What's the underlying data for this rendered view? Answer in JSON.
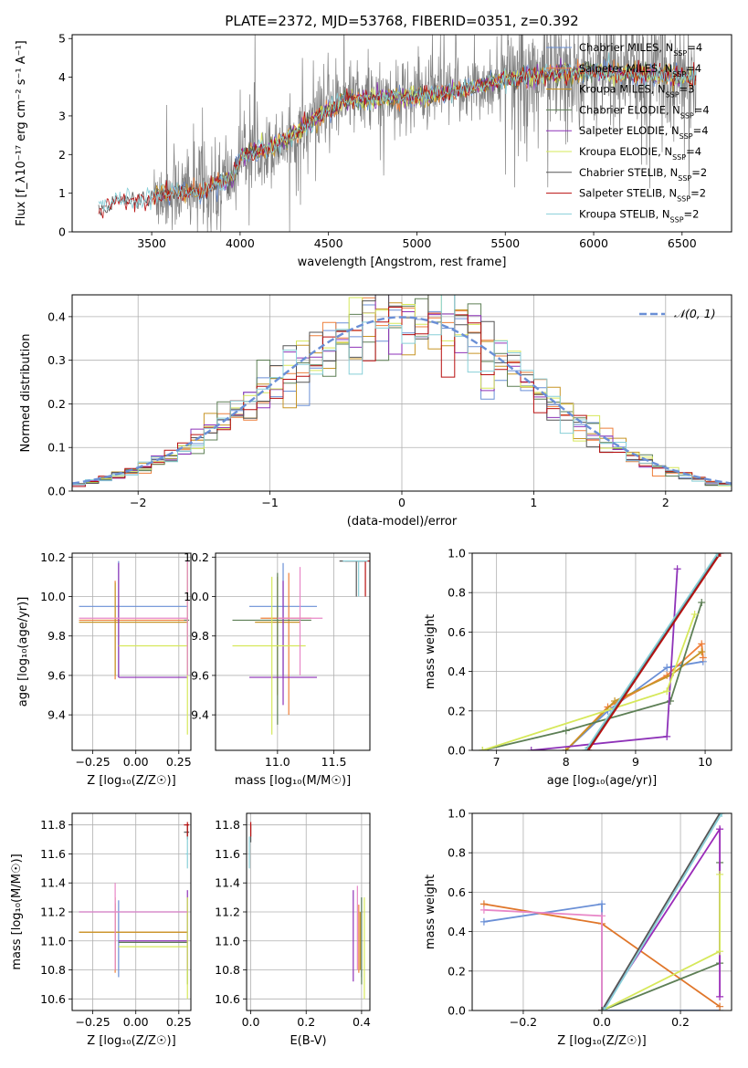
{
  "figure": {
    "title": "PLATE=2372, MJD=53768, FIBERID=0351, z=0.392"
  },
  "colors": {
    "chab_miles": "#6a8fd6",
    "salp_miles": "#ee7f3a",
    "krou_miles": "#c79526",
    "chab_elodie": "#5d7f55",
    "salp_elodie": "#8e32b8",
    "krou_elodie": "#d6e85a",
    "chab_stelib": "#555555",
    "salp_stelib": "#b80f0f",
    "krou_stelib": "#88cfd8",
    "grid": "#b0b0b0",
    "spectrum": "#808080",
    "normal": "#6a8fd6",
    "orange_line": "#e0762a",
    "pink_line": "#e887c7",
    "purple_line": "#9a2ab8"
  },
  "chart_data": [
    {
      "id": "spectrum",
      "type": "line",
      "xlabel": "wavelength [Angstrom, rest frame]",
      "ylabel": "Flux [fₐλ 10⁻¹⁷ erg cm⁻² s⁻¹ A⁻¹]",
      "ylabel_display": "Flux [f_λ10⁻¹⁷ erg cm⁻² s⁻¹ A⁻¹]",
      "xlim": [
        3050,
        6780
      ],
      "ylim": [
        0,
        5.1
      ],
      "xticks": [
        3500,
        4000,
        4500,
        5000,
        5500,
        6000,
        6500
      ],
      "yticks": [
        0,
        1,
        2,
        3,
        4,
        5
      ],
      "legend": [
        "Chabrier MILES, N_SSP=4",
        "Salpeter MILES, N_SSP=4",
        "Kroupa MILES, N_SSP=3",
        "Chabrier ELODIE, N_SSP=4",
        "Salpeter ELODIE, N_SSP=4",
        "Kroupa ELODIE, N_SSP=4",
        "Chabrier STELIB, N_SSP=2",
        "Salpeter STELIB, N_SSP=2",
        "Kroupa STELIB, N_SSP=2"
      ],
      "legend_models": [
        [
          "Chabrier MILES, N",
          "SSP",
          "=4"
        ],
        [
          "Salpeter MILES, N",
          "SSP",
          "=4"
        ],
        [
          "Kroupa MILES, N",
          "SSP",
          "=3"
        ],
        [
          "Chabrier ELODIE, N",
          "SSP",
          "=4"
        ],
        [
          "Salpeter ELODIE, N",
          "SSP",
          "=4"
        ],
        [
          "Kroupa ELODIE, N",
          "SSP",
          "=4"
        ],
        [
          "Chabrier STELIB, N",
          "SSP",
          "=2"
        ],
        [
          "Salpeter STELIB, N",
          "SSP",
          "=2"
        ],
        [
          "Kroupa STELIB, N",
          "SSP",
          "=2"
        ]
      ],
      "continuum": [
        [
          3200,
          0.55
        ],
        [
          3260,
          0.75
        ],
        [
          3350,
          0.85
        ],
        [
          3450,
          0.82
        ],
        [
          3550,
          1.0
        ],
        [
          3700,
          1.05
        ],
        [
          3800,
          1.05
        ],
        [
          3900,
          1.3
        ],
        [
          3960,
          1.4
        ],
        [
          4000,
          1.95
        ],
        [
          4100,
          2.1
        ],
        [
          4200,
          2.25
        ],
        [
          4300,
          2.5
        ],
        [
          4450,
          3.0
        ],
        [
          4600,
          3.4
        ],
        [
          4800,
          3.45
        ],
        [
          5000,
          3.5
        ],
        [
          5200,
          3.6
        ],
        [
          5400,
          3.85
        ],
        [
          5600,
          4.0
        ],
        [
          5800,
          4.1
        ],
        [
          6000,
          4.15
        ],
        [
          6200,
          4.1
        ],
        [
          6400,
          4.05
        ],
        [
          6580,
          4.0
        ]
      ],
      "data_start": 3510
    },
    {
      "id": "residuals",
      "type": "line",
      "xlabel": "(data-model)/error",
      "ylabel": "Normed distribution",
      "xlim": [
        -2.5,
        2.5
      ],
      "ylim": [
        0,
        0.45
      ],
      "xticks": [
        -2,
        -1,
        0,
        1,
        2
      ],
      "yticks": [
        0.0,
        0.1,
        0.2,
        0.3,
        0.4
      ],
      "legend": "𝒩(0, 1)",
      "bin_width": 0.1
    },
    {
      "id": "age_vs_Z",
      "type": "scatter",
      "xlabel": "Z [log₁₀(Z/Z☉)]",
      "ylabel": "age  [log₁₀(age/yr)]",
      "xlim": [
        -0.37,
        0.32
      ],
      "ylim": [
        9.22,
        10.22
      ],
      "xticks": [
        -0.25,
        0.0,
        0.25
      ],
      "xticklabels": [
        "−0.25",
        "0.00",
        "0.25"
      ],
      "yticks": [
        9.4,
        9.6,
        9.8,
        10.0,
        10.2
      ]
    },
    {
      "id": "age_vs_mass",
      "type": "scatter",
      "xlabel": "mass [log₁₀(M/M☉)]",
      "ylabel": "",
      "xlim": [
        10.45,
        11.82
      ],
      "ylim": [
        9.22,
        10.22
      ],
      "xticks": [
        11.0,
        11.5
      ],
      "yticks": [
        9.4,
        9.6,
        9.8,
        10.0,
        10.2
      ]
    },
    {
      "id": "weight_vs_age",
      "type": "line",
      "xlabel": "age  [log₁₀(age/yr)]",
      "ylabel": "mass weight",
      "xlim": [
        6.65,
        10.38
      ],
      "ylim": [
        0,
        1
      ],
      "xticks": [
        7,
        8,
        9,
        10
      ],
      "yticks": [
        0.0,
        0.2,
        0.4,
        0.6,
        0.8,
        1.0
      ]
    },
    {
      "id": "mass_vs_Z",
      "type": "scatter",
      "xlabel": "Z [log₁₀(Z/Z☉)]",
      "ylabel": "mass [log₁₀(M/M☉)]",
      "xlim": [
        -0.37,
        0.32
      ],
      "ylim": [
        10.52,
        11.88
      ],
      "xticks": [
        -0.25,
        0.0,
        0.25
      ],
      "xticklabels": [
        "−0.25",
        "0.00",
        "0.25"
      ],
      "yticks": [
        10.6,
        10.8,
        11.0,
        11.2,
        11.4,
        11.6,
        11.8
      ]
    },
    {
      "id": "mass_vs_ebv",
      "type": "scatter",
      "xlabel": "E(B-V)",
      "ylabel": "",
      "xlim": [
        -0.015,
        0.43
      ],
      "ylim": [
        10.52,
        11.88
      ],
      "xticks": [
        0.0,
        0.2,
        0.4
      ],
      "yticks": [
        10.6,
        10.8,
        11.0,
        11.2,
        11.4,
        11.6,
        11.8
      ]
    },
    {
      "id": "weight_vs_Z",
      "type": "line",
      "xlabel": "Z [log₁₀(Z/Z☉)]",
      "ylabel": "mass weight",
      "xlim": [
        -0.33,
        0.33
      ],
      "ylim": [
        0,
        1
      ],
      "xticks": [
        -0.2,
        0.0,
        0.2
      ],
      "xticklabels": [
        "−0.2",
        "0.0",
        "0.2"
      ],
      "yticks": [
        0.0,
        0.2,
        0.4,
        0.6,
        0.8,
        1.0
      ]
    }
  ],
  "errorbars": {
    "age_vs_Z": [
      {
        "c": "chab_miles",
        "x": -0.1,
        "xlo": -0.33,
        "xhi": 0.3,
        "y": 9.95,
        "ylo": 9.59,
        "yhi": 10.18
      },
      {
        "c": "salp_miles",
        "x": -0.12,
        "xlo": -0.33,
        "xhi": 0.3,
        "y": 9.88,
        "ylo": 9.58,
        "yhi": 10.08
      },
      {
        "c": "krou_miles",
        "x": -0.12,
        "xlo": -0.33,
        "xhi": 0.3,
        "y": 9.87,
        "ylo": 9.6,
        "yhi": 10.07
      },
      {
        "c": "chab_elodie",
        "x": 0.3,
        "xlo": 0.28,
        "xhi": 0.31,
        "y": 9.88,
        "ylo": 9.6,
        "yhi": 10.18
      },
      {
        "c": "salp_elodie",
        "x": -0.1,
        "xlo": -0.1,
        "xhi": 0.3,
        "y": 9.59,
        "ylo": 9.59,
        "yhi": 10.17
      },
      {
        "c": "krou_elodie",
        "x": 0.3,
        "xlo": -0.1,
        "xhi": 0.3,
        "y": 9.75,
        "ylo": 9.3,
        "yhi": 10.17
      },
      {
        "c": "pink_line",
        "x": 0.3,
        "xlo": -0.33,
        "xhi": 0.3,
        "y": 9.89,
        "ylo": 9.6,
        "yhi": 10.18
      }
    ],
    "age_vs_mass": [
      {
        "c": "chab_miles",
        "x": 11.05,
        "xlo": 10.75,
        "xhi": 11.35,
        "y": 9.95,
        "ylo": 9.6,
        "yhi": 10.17
      },
      {
        "c": "salp_miles",
        "x": 11.1,
        "xlo": 10.85,
        "xhi": 11.3,
        "y": 9.89,
        "ylo": 9.4,
        "yhi": 10.12
      },
      {
        "c": "krou_miles",
        "x": 11.0,
        "xlo": 10.8,
        "xhi": 11.2,
        "y": 9.87,
        "ylo": 9.5,
        "yhi": 10.1
      },
      {
        "c": "chab_elodie",
        "x": 11.0,
        "xlo": 10.6,
        "xhi": 11.3,
        "y": 9.88,
        "ylo": 9.35,
        "yhi": 10.12
      },
      {
        "c": "salp_elodie",
        "x": 11.05,
        "xlo": 10.75,
        "xhi": 11.35,
        "y": 9.59,
        "ylo": 9.45,
        "yhi": 10.08
      },
      {
        "c": "krou_elodie",
        "x": 10.95,
        "xlo": 10.6,
        "xhi": 11.25,
        "y": 9.75,
        "ylo": 9.3,
        "yhi": 10.1
      },
      {
        "c": "pink_line",
        "x": 11.2,
        "xlo": 11.0,
        "xhi": 11.4,
        "y": 9.89,
        "ylo": 9.6,
        "yhi": 10.15
      },
      {
        "c": "chab_stelib",
        "x": 11.7,
        "xlo": 11.55,
        "xhi": 11.78,
        "y": 10.18,
        "ylo": 10.0,
        "yhi": 10.18
      },
      {
        "c": "salp_stelib",
        "x": 11.78,
        "xlo": 11.6,
        "xhi": 11.82,
        "y": 10.18,
        "ylo": 10.0,
        "yhi": 10.18
      },
      {
        "c": "krou_stelib",
        "x": 11.72,
        "xlo": 11.58,
        "xhi": 11.8,
        "y": 10.18,
        "ylo": 10.0,
        "yhi": 10.18
      }
    ],
    "mass_vs_Z": [
      {
        "c": "chab_miles",
        "x": -0.1,
        "xlo": -0.33,
        "xhi": 0.3,
        "y": 11.2,
        "ylo": 10.75,
        "yhi": 11.28
      },
      {
        "c": "salp_miles",
        "x": -0.12,
        "xlo": -0.33,
        "xhi": 0.3,
        "y": 11.06,
        "ylo": 10.78,
        "yhi": 11.3
      },
      {
        "c": "krou_miles",
        "x": -0.12,
        "xlo": -0.33,
        "xhi": 0.3,
        "y": 11.06,
        "ylo": 10.8,
        "yhi": 11.26
      },
      {
        "c": "chab_elodie",
        "x": 0.3,
        "xlo": -0.1,
        "xhi": 0.3,
        "y": 10.99,
        "ylo": 10.7,
        "yhi": 11.3
      },
      {
        "c": "salp_elodie",
        "x": 0.3,
        "xlo": -0.1,
        "xhi": 0.3,
        "y": 11.0,
        "ylo": 10.8,
        "yhi": 11.35
      },
      {
        "c": "krou_elodie",
        "x": 0.3,
        "xlo": -0.1,
        "xhi": 0.3,
        "y": 10.96,
        "ylo": 10.6,
        "yhi": 11.3
      },
      {
        "c": "pink_line",
        "x": -0.12,
        "xlo": -0.33,
        "xhi": 0.3,
        "y": 11.2,
        "ylo": 10.8,
        "yhi": 11.4
      },
      {
        "c": "chab_stelib",
        "x": 0.3,
        "xlo": 0.28,
        "xhi": 0.31,
        "y": 11.75,
        "ylo": 11.7,
        "yhi": 11.8
      },
      {
        "c": "salp_stelib",
        "x": 0.3,
        "xlo": 0.28,
        "xhi": 0.31,
        "y": 11.8,
        "ylo": 11.72,
        "yhi": 11.82
      },
      {
        "c": "krou_stelib",
        "x": 0.3,
        "xlo": 0.29,
        "xhi": 0.3,
        "y": 11.6,
        "ylo": 11.5,
        "yhi": 11.72
      }
    ],
    "mass_vs_ebv": [
      {
        "c": "chab_miles",
        "x": 0.4,
        "xlo": 0.4,
        "xhi": 0.4,
        "y": 11.05,
        "ylo": 10.75,
        "yhi": 11.3
      },
      {
        "c": "salp_miles",
        "x": 0.39,
        "xlo": 0.39,
        "xhi": 0.39,
        "y": 11.0,
        "ylo": 10.78,
        "yhi": 11.25
      },
      {
        "c": "krou_miles",
        "x": 0.395,
        "xlo": 0.395,
        "xhi": 0.395,
        "y": 11.0,
        "ylo": 10.8,
        "yhi": 11.2
      },
      {
        "c": "chab_elodie",
        "x": 0.4,
        "xlo": 0.4,
        "xhi": 0.4,
        "y": 11.0,
        "ylo": 10.7,
        "yhi": 11.3
      },
      {
        "c": "salp_elodie",
        "x": 0.37,
        "xlo": 0.37,
        "xhi": 0.37,
        "y": 11.0,
        "ylo": 10.72,
        "yhi": 11.35
      },
      {
        "c": "krou_elodie",
        "x": 0.41,
        "xlo": 0.41,
        "xhi": 0.41,
        "y": 10.96,
        "ylo": 10.6,
        "yhi": 11.3
      },
      {
        "c": "pink_line",
        "x": 0.385,
        "xlo": 0.385,
        "xhi": 0.385,
        "y": 11.1,
        "ylo": 10.8,
        "yhi": 11.38
      },
      {
        "c": "chab_stelib",
        "x": 0.0,
        "xlo": 0.0,
        "xhi": 0.0,
        "y": 11.75,
        "ylo": 11.68,
        "yhi": 11.8
      },
      {
        "c": "salp_stelib",
        "x": 0.0,
        "xlo": 0.0,
        "xhi": 0.0,
        "y": 11.78,
        "ylo": 11.72,
        "yhi": 11.82
      },
      {
        "c": "krou_stelib",
        "x": -0.005,
        "xlo": -0.005,
        "xhi": -0.005,
        "y": 11.6,
        "ylo": 11.5,
        "yhi": 11.72
      }
    ]
  },
  "weight_lines": {
    "weight_vs_age": [
      {
        "c": "chab_miles",
        "pts": [
          [
            8.0,
            0.0
          ],
          [
            8.6,
            0.2
          ],
          [
            9.45,
            0.42
          ],
          [
            9.97,
            0.45
          ]
        ]
      },
      {
        "c": "salp_miles",
        "pts": [
          [
            8.0,
            0.0
          ],
          [
            8.6,
            0.22
          ],
          [
            9.45,
            0.38
          ],
          [
            9.95,
            0.54
          ],
          [
            9.97,
            0.47
          ]
        ]
      },
      {
        "c": "krou_miles",
        "pts": [
          [
            8.0,
            0.0
          ],
          [
            8.7,
            0.25
          ],
          [
            9.5,
            0.38
          ],
          [
            9.95,
            0.5
          ]
        ]
      },
      {
        "c": "chab_elodie",
        "pts": [
          [
            6.8,
            0.0
          ],
          [
            8.0,
            0.1
          ],
          [
            9.5,
            0.25
          ],
          [
            9.95,
            0.75
          ]
        ]
      },
      {
        "c": "salp_elodie",
        "pts": [
          [
            7.5,
            0.0
          ],
          [
            9.45,
            0.07
          ],
          [
            9.6,
            0.92
          ]
        ]
      },
      {
        "c": "krou_elodie",
        "pts": [
          [
            6.8,
            0.0
          ],
          [
            9.45,
            0.3
          ],
          [
            9.85,
            0.69
          ]
        ]
      },
      {
        "c": "chab_stelib",
        "pts": [
          [
            8.3,
            0.0
          ],
          [
            10.2,
            1.0
          ]
        ]
      },
      {
        "c": "salp_stelib",
        "pts": [
          [
            8.32,
            0.0
          ],
          [
            10.22,
            1.0
          ]
        ]
      },
      {
        "c": "krou_stelib",
        "pts": [
          [
            8.28,
            0.0
          ],
          [
            10.18,
            1.0
          ]
        ]
      }
    ],
    "weight_vs_Z": [
      {
        "c": "chab_miles",
        "pts": [
          [
            -0.3,
            0.45
          ],
          [
            0.0,
            0.54
          ],
          [
            0.0,
            0.0
          ],
          [
            0.3,
            0.0
          ]
        ]
      },
      {
        "c": "orange_line",
        "pts": [
          [
            -0.3,
            0.54
          ],
          [
            0.0,
            0.44
          ],
          [
            0.3,
            0.02
          ]
        ]
      },
      {
        "c": "pink_line",
        "pts": [
          [
            -0.3,
            0.51
          ],
          [
            0.0,
            0.48
          ],
          [
            0.0,
            0.0
          ]
        ]
      },
      {
        "c": "chab_elodie",
        "pts": [
          [
            0.0,
            0.0
          ],
          [
            0.3,
            0.24
          ],
          [
            0.3,
            0.75
          ]
        ]
      },
      {
        "c": "purple_line",
        "pts": [
          [
            0.0,
            0.0
          ],
          [
            0.3,
            0.92
          ],
          [
            0.3,
            0.07
          ]
        ]
      },
      {
        "c": "krou_elodie",
        "pts": [
          [
            0.0,
            0.0
          ],
          [
            0.3,
            0.3
          ],
          [
            0.3,
            0.69
          ]
        ]
      },
      {
        "c": "chab_stelib",
        "pts": [
          [
            0.0,
            0.0
          ],
          [
            0.3,
            1.0
          ]
        ]
      },
      {
        "c": "krou_stelib",
        "pts": [
          [
            0.005,
            0.0
          ],
          [
            0.305,
            1.0
          ]
        ]
      }
    ]
  }
}
